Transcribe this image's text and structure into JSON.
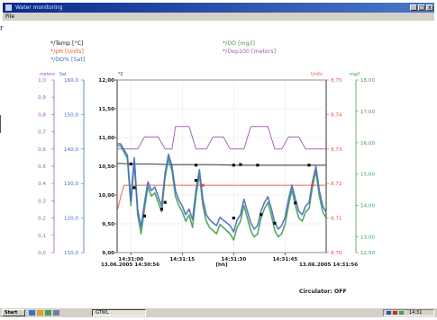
{
  "window": {
    "title": "Water monitoring",
    "menu_file": "File",
    "minimize_glyph": "_",
    "maximize_glyph": "□",
    "close_glyph": "x",
    "accent": "#0a2a8a"
  },
  "side_fragment": "r",
  "legend": {
    "temp": "*/Temp [°C]",
    "ph": "*/pH [Units]",
    "do_sat": "*/DO% [Sat]",
    "do": "*/DO [mg/l]",
    "dep": "*/Dep100 [meters]"
  },
  "axis_headers": {
    "meters": "meters",
    "sat": "Sat",
    "celsius": "°C",
    "units": "Units",
    "mgl": "mg/l"
  },
  "status": {
    "circulator": "Circulator: OFF"
  },
  "taskbar": {
    "start_label": "Start",
    "task_label": "GTWL",
    "tray_time": "14:31",
    "icons": [
      "explorer-icon",
      "mail-icon",
      "media-icon",
      "desktop-icon"
    ]
  },
  "chart_data": {
    "type": "line",
    "x_tick_labels": [
      "14:31:00",
      "14:31:15",
      "14:31:30",
      "14:31:45"
    ],
    "x_start_label": "13.06.2005 14:30:56",
    "x_end_label": "13.06.2005 14:31:56",
    "x_unit_label": "[hh]",
    "x_domain_seconds": [
      56,
      117
    ],
    "x_tick_seconds": [
      60,
      75,
      90,
      105
    ],
    "axes": {
      "depth": {
        "color": "#a058b4",
        "range": [
          0.0,
          1.0
        ],
        "ticks": [
          "0,0",
          "0,1",
          "0,2",
          "0,3",
          "0,4",
          "0,5",
          "0,6",
          "0,7",
          "0,8",
          "0,9",
          "1,0"
        ]
      },
      "do_sat": {
        "color": "#4868c8",
        "range": [
          110.0,
          160.0
        ],
        "ticks": [
          "110,0",
          "120,0",
          "130,0",
          "140,0",
          "150,0",
          "160,0"
        ]
      },
      "temp": {
        "color": "#202020",
        "range": [
          9.0,
          12.0
        ],
        "ticks": [
          "9,00",
          "9,50",
          "10,00",
          "10,50",
          "11,00",
          "11,50",
          "12,00"
        ]
      },
      "ph": {
        "color": "#e05838",
        "range": [
          8.7,
          8.75
        ],
        "ticks": [
          "8,70",
          "8,71",
          "8,72",
          "8,73",
          "8,74",
          "8,75"
        ]
      },
      "do": {
        "color": "#40a050",
        "range": [
          12.5,
          18.0
        ],
        "ticks": [
          "12,50",
          "13,00",
          "14,00",
          "15,00",
          "16,00",
          "17,00",
          "18,00"
        ]
      }
    },
    "series": [
      {
        "name": "*/Temp [°C]",
        "axis": "temp",
        "color": "#202020",
        "points": [
          [
            56,
            10.55
          ],
          [
            60,
            10.54
          ],
          [
            66,
            10.54
          ],
          [
            72,
            10.53
          ],
          [
            78,
            10.53
          ],
          [
            84,
            10.53
          ],
          [
            90,
            10.52
          ],
          [
            96,
            10.52
          ],
          [
            102,
            10.52
          ],
          [
            108,
            10.52
          ],
          [
            114,
            10.52
          ],
          [
            117,
            10.52
          ]
        ],
        "markers": [
          [
            60,
            10.54
          ],
          [
            79,
            10.52
          ],
          [
            90,
            10.52
          ],
          [
            92,
            10.53
          ],
          [
            97,
            10.52
          ],
          [
            112,
            10.52
          ]
        ]
      },
      {
        "name": "*/pH [Units]",
        "axis": "ph",
        "color": "#e05838",
        "points": [
          [
            56,
            8.712
          ],
          [
            57,
            8.716
          ],
          [
            58,
            8.7195
          ],
          [
            117,
            8.7195
          ]
        ],
        "markers": [
          [
            81,
            8.7195
          ],
          [
            113,
            8.7195
          ]
        ]
      },
      {
        "name": "*/Dep100 [meters]",
        "axis": "depth",
        "color": "#a058b4",
        "points": [
          [
            56,
            0.6
          ],
          [
            62,
            0.6
          ],
          [
            64,
            0.67
          ],
          [
            68,
            0.67
          ],
          [
            70,
            0.6
          ],
          [
            72,
            0.6
          ],
          [
            73,
            0.73
          ],
          [
            77,
            0.73
          ],
          [
            79,
            0.6
          ],
          [
            82,
            0.6
          ],
          [
            84,
            0.67
          ],
          [
            87,
            0.67
          ],
          [
            89,
            0.6
          ],
          [
            93,
            0.6
          ],
          [
            95,
            0.73
          ],
          [
            100,
            0.73
          ],
          [
            102,
            0.6
          ],
          [
            104,
            0.6
          ],
          [
            106,
            0.67
          ],
          [
            109,
            0.67
          ],
          [
            111,
            0.6
          ],
          [
            117,
            0.6
          ]
        ]
      },
      {
        "name": "*/DO [mg/l]",
        "axis": "do",
        "color": "#40a050",
        "points": [
          [
            56,
            15.9
          ],
          [
            57,
            15.9
          ],
          [
            58,
            15.7
          ],
          [
            59,
            15.5
          ],
          [
            60,
            14.0
          ],
          [
            61,
            15.4
          ],
          [
            62,
            13.7
          ],
          [
            63,
            13.1
          ],
          [
            64,
            13.9
          ],
          [
            65,
            14.6
          ],
          [
            66,
            14.3
          ],
          [
            67,
            14.4
          ],
          [
            68,
            14.1
          ],
          [
            69,
            13.8
          ],
          [
            70,
            14.9
          ],
          [
            71,
            15.5
          ],
          [
            72,
            15.1
          ],
          [
            73,
            14.3
          ],
          [
            74,
            14.0
          ],
          [
            75,
            13.8
          ],
          [
            76,
            13.5
          ],
          [
            77,
            13.7
          ],
          [
            78,
            13.3
          ],
          [
            79,
            14.3
          ],
          [
            80,
            15.0
          ],
          [
            81,
            14.0
          ],
          [
            82,
            13.5
          ],
          [
            83,
            13.3
          ],
          [
            84,
            13.2
          ],
          [
            85,
            13.1
          ],
          [
            86,
            13.4
          ],
          [
            87,
            13.3
          ],
          [
            88,
            13.2
          ],
          [
            89,
            13.1
          ],
          [
            90,
            12.9
          ],
          [
            91,
            13.3
          ],
          [
            92,
            13.5
          ],
          [
            93,
            14.0
          ],
          [
            94,
            13.6
          ],
          [
            95,
            13.2
          ],
          [
            96,
            13.0
          ],
          [
            97,
            13.1
          ],
          [
            98,
            13.6
          ],
          [
            99,
            13.9
          ],
          [
            100,
            14.1
          ],
          [
            101,
            13.7
          ],
          [
            102,
            13.2
          ],
          [
            103,
            13.0
          ],
          [
            104,
            13.1
          ],
          [
            105,
            13.4
          ],
          [
            106,
            14.0
          ],
          [
            107,
            14.5
          ],
          [
            108,
            14.0
          ],
          [
            109,
            13.6
          ],
          [
            110,
            13.5
          ],
          [
            111,
            13.8
          ],
          [
            112,
            13.9
          ],
          [
            113,
            14.6
          ],
          [
            114,
            15.1
          ],
          [
            115,
            14.3
          ],
          [
            116,
            13.8
          ],
          [
            117,
            13.6
          ]
        ],
        "markers": [
          [
            70,
            14.1
          ],
          [
            79,
            14.8
          ]
        ]
      },
      {
        "name": "*/DO% [Sat]",
        "axis": "do_sat",
        "color": "#4868c8",
        "points": [
          [
            56,
            141.5
          ],
          [
            57,
            141.5
          ],
          [
            58,
            139.8
          ],
          [
            59,
            138.2
          ],
          [
            60,
            125.0
          ],
          [
            61,
            137.5
          ],
          [
            62,
            122.5
          ],
          [
            63,
            117.5
          ],
          [
            64,
            124.5
          ],
          [
            65,
            130.5
          ],
          [
            66,
            128.0
          ],
          [
            67,
            129.0
          ],
          [
            68,
            126.2
          ],
          [
            69,
            123.5
          ],
          [
            70,
            133.0
          ],
          [
            71,
            138.5
          ],
          [
            72,
            135.0
          ],
          [
            73,
            128.0
          ],
          [
            74,
            125.3
          ],
          [
            75,
            123.5
          ],
          [
            76,
            121.0
          ],
          [
            77,
            122.6
          ],
          [
            78,
            119.5
          ],
          [
            79,
            128.0
          ],
          [
            80,
            134.0
          ],
          [
            81,
            125.5
          ],
          [
            82,
            121.0
          ],
          [
            83,
            119.5
          ],
          [
            84,
            118.6
          ],
          [
            85,
            117.8
          ],
          [
            86,
            120.2
          ],
          [
            87,
            119.4
          ],
          [
            88,
            118.6
          ],
          [
            89,
            117.8
          ],
          [
            90,
            116.0
          ],
          [
            91,
            119.4
          ],
          [
            92,
            121.0
          ],
          [
            93,
            125.5
          ],
          [
            94,
            122.0
          ],
          [
            95,
            118.6
          ],
          [
            96,
            116.8
          ],
          [
            97,
            117.8
          ],
          [
            98,
            122.0
          ],
          [
            99,
            124.5
          ],
          [
            100,
            126.2
          ],
          [
            101,
            122.8
          ],
          [
            102,
            118.6
          ],
          [
            103,
            116.8
          ],
          [
            104,
            117.8
          ],
          [
            105,
            120.2
          ],
          [
            106,
            125.5
          ],
          [
            107,
            129.5
          ],
          [
            108,
            125.5
          ],
          [
            109,
            122.0
          ],
          [
            110,
            121.0
          ],
          [
            111,
            123.5
          ],
          [
            112,
            124.5
          ],
          [
            113,
            130.5
          ],
          [
            114,
            135.0
          ],
          [
            115,
            128.0
          ],
          [
            116,
            123.5
          ],
          [
            117,
            121.7
          ]
        ],
        "markers": [
          [
            61,
            128.8
          ],
          [
            64,
            120.6
          ],
          [
            69,
            122.6
          ],
          [
            90,
            120.0
          ],
          [
            98,
            121.0
          ],
          [
            102,
            118.5
          ],
          [
            108,
            124.4
          ]
        ]
      }
    ]
  }
}
